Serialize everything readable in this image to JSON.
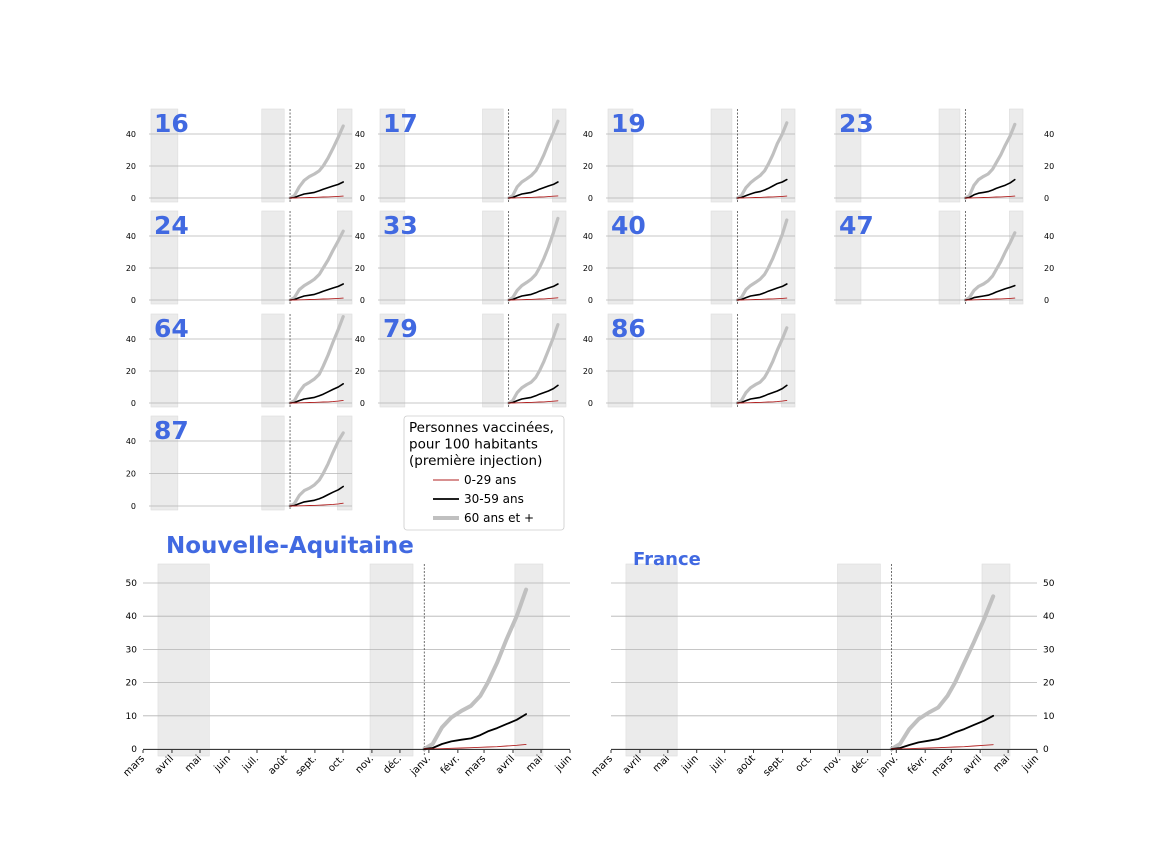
{
  "chart_data": {
    "type": "line",
    "legend": {
      "title_lines": [
        "Personnes vaccinées,",
        "pour 100 habitants",
        "(première injection)"
      ],
      "entries": [
        {
          "label": "0-29 ans",
          "color": "#b22222"
        },
        {
          "label": "30-59 ans",
          "color": "#000000"
        },
        {
          "label": "60 ans et +",
          "color": "#c0c0c0"
        }
      ]
    },
    "title_color": "#4169e1",
    "month_ticks": [
      "mars",
      "avril",
      "mai",
      "juin",
      "juil.",
      "août",
      "sept.",
      "oct.",
      "nov.",
      "déc.",
      "janv.",
      "févr.",
      "mars",
      "avril",
      "mai",
      "juin"
    ],
    "x_range": [
      "2020-03-01",
      "2021-06-01"
    ],
    "shaded_periods": [
      [
        "2020-03-17",
        "2020-05-11"
      ],
      [
        "2020-10-30",
        "2020-12-15"
      ],
      [
        "2021-04-03",
        "2021-05-03"
      ]
    ],
    "vline_date": "2020-12-27",
    "small_yticks": [
      "0",
      "20",
      "40"
    ],
    "large_yticks": [
      "0",
      "10",
      "20",
      "30",
      "40",
      "50"
    ],
    "grid": true,
    "dates": [
      "2020-12-27",
      "2021-01-05",
      "2021-01-15",
      "2021-01-25",
      "2021-02-05",
      "2021-02-15",
      "2021-02-25",
      "2021-03-05",
      "2021-03-15",
      "2021-03-25",
      "2021-04-05",
      "2021-04-15"
    ],
    "panels": [
      {
        "name": "16",
        "s0": [
          0,
          0,
          0.1,
          0.2,
          0.3,
          0.4,
          0.5,
          0.6,
          0.7,
          0.8,
          1.0,
          1.2
        ],
        "s1": [
          0,
          0.3,
          1.5,
          2.5,
          3.0,
          3.5,
          4.5,
          5.5,
          6.5,
          7.5,
          8.5,
          10.0
        ],
        "s2": [
          0,
          1.5,
          7.0,
          11.0,
          13.5,
          15.0,
          17.0,
          20.0,
          25.0,
          31.0,
          38.0,
          45.0
        ]
      },
      {
        "name": "17",
        "s0": [
          0,
          0,
          0.1,
          0.2,
          0.3,
          0.4,
          0.5,
          0.6,
          0.7,
          0.9,
          1.1,
          1.3
        ],
        "s1": [
          0,
          0.3,
          1.5,
          2.5,
          3.0,
          3.5,
          4.5,
          5.5,
          6.5,
          7.5,
          8.5,
          10.0
        ],
        "s2": [
          0,
          1.5,
          7.0,
          10.0,
          12.0,
          14.0,
          17.0,
          21.0,
          27.0,
          34.0,
          41.0,
          48.0
        ]
      },
      {
        "name": "19",
        "s0": [
          0,
          0,
          0.1,
          0.2,
          0.3,
          0.4,
          0.5,
          0.6,
          0.7,
          0.8,
          1.0,
          1.2
        ],
        "s1": [
          0,
          0.3,
          1.5,
          2.5,
          3.5,
          4.0,
          5.0,
          6.0,
          7.5,
          9.0,
          10.0,
          11.5
        ],
        "s2": [
          0,
          1.5,
          6.5,
          9.5,
          12.0,
          14.0,
          17.0,
          21.0,
          27.0,
          34.0,
          40.0,
          47.0
        ]
      },
      {
        "name": "23",
        "s0": [
          0,
          0,
          0.1,
          0.2,
          0.3,
          0.4,
          0.5,
          0.6,
          0.7,
          0.8,
          1.0,
          1.2
        ],
        "s1": [
          0,
          0.3,
          2.0,
          3.0,
          3.5,
          4.0,
          5.0,
          6.0,
          7.0,
          8.0,
          9.5,
          11.5
        ],
        "s2": [
          0,
          1.5,
          8.0,
          11.5,
          13.5,
          15.0,
          18.0,
          22.0,
          27.0,
          33.0,
          39.0,
          46.0
        ]
      },
      {
        "name": "24",
        "s0": [
          0,
          0,
          0.1,
          0.2,
          0.3,
          0.4,
          0.5,
          0.6,
          0.7,
          0.8,
          1.0,
          1.2
        ],
        "s1": [
          0,
          0.3,
          1.5,
          2.5,
          3.0,
          3.5,
          4.5,
          5.5,
          6.5,
          7.5,
          8.5,
          10.0
        ],
        "s2": [
          0,
          1.5,
          6.5,
          9.0,
          11.0,
          13.0,
          16.0,
          20.0,
          25.0,
          31.0,
          37.0,
          43.0
        ]
      },
      {
        "name": "33",
        "s0": [
          0,
          0,
          0.1,
          0.2,
          0.3,
          0.4,
          0.5,
          0.6,
          0.7,
          0.9,
          1.1,
          1.4
        ],
        "s1": [
          0,
          0.3,
          1.5,
          2.5,
          3.0,
          3.5,
          4.5,
          5.5,
          6.5,
          7.5,
          8.5,
          10.0
        ],
        "s2": [
          0,
          1.5,
          6.0,
          9.0,
          11.0,
          13.0,
          16.0,
          20.0,
          26.0,
          33.0,
          42.0,
          51.0
        ]
      },
      {
        "name": "40",
        "s0": [
          0,
          0,
          0.1,
          0.2,
          0.3,
          0.4,
          0.5,
          0.6,
          0.7,
          0.8,
          1.0,
          1.2
        ],
        "s1": [
          0,
          0.3,
          1.5,
          2.5,
          3.0,
          3.5,
          4.5,
          5.5,
          6.5,
          7.5,
          8.5,
          10.0
        ],
        "s2": [
          0,
          1.5,
          6.5,
          9.0,
          11.0,
          13.0,
          16.0,
          20.0,
          26.0,
          33.0,
          41.0,
          50.0
        ]
      },
      {
        "name": "47",
        "s0": [
          0,
          0,
          0.1,
          0.2,
          0.3,
          0.4,
          0.5,
          0.6,
          0.7,
          0.8,
          1.0,
          1.2
        ],
        "s1": [
          0,
          0.3,
          1.5,
          2.0,
          2.5,
          3.0,
          4.0,
          5.0,
          6.0,
          7.0,
          8.0,
          9.0
        ],
        "s2": [
          0,
          1.5,
          6.0,
          8.5,
          10.0,
          12.0,
          15.0,
          19.0,
          24.0,
          30.0,
          36.0,
          42.0
        ]
      },
      {
        "name": "64",
        "s0": [
          0,
          0,
          0.1,
          0.2,
          0.3,
          0.4,
          0.5,
          0.6,
          0.7,
          0.9,
          1.2,
          1.6
        ],
        "s1": [
          0,
          0.3,
          1.5,
          2.5,
          3.0,
          3.5,
          4.5,
          5.5,
          7.0,
          8.5,
          10.0,
          12.0
        ],
        "s2": [
          0,
          1.5,
          7.0,
          11.0,
          13.0,
          15.0,
          18.0,
          23.0,
          30.0,
          38.0,
          46.0,
          54.0
        ]
      },
      {
        "name": "79",
        "s0": [
          0,
          0,
          0.1,
          0.2,
          0.3,
          0.4,
          0.5,
          0.6,
          0.7,
          0.9,
          1.1,
          1.4
        ],
        "s1": [
          0,
          0.3,
          1.5,
          2.5,
          3.0,
          3.5,
          4.5,
          5.5,
          6.5,
          7.5,
          9.0,
          11.0
        ],
        "s2": [
          0,
          1.5,
          6.5,
          9.5,
          11.5,
          13.0,
          16.0,
          20.0,
          26.0,
          33.0,
          41.0,
          49.0
        ]
      },
      {
        "name": "86",
        "s0": [
          0,
          0,
          0.1,
          0.2,
          0.3,
          0.4,
          0.5,
          0.6,
          0.7,
          0.9,
          1.2,
          1.6
        ],
        "s1": [
          0,
          0.3,
          1.5,
          2.5,
          3.0,
          3.5,
          4.5,
          5.5,
          6.5,
          7.5,
          9.0,
          11.0
        ],
        "s2": [
          0,
          1.5,
          6.5,
          9.5,
          11.5,
          13.0,
          16.0,
          20.0,
          26.0,
          33.0,
          40.0,
          47.0
        ]
      },
      {
        "name": "87",
        "s0": [
          0,
          0,
          0.1,
          0.2,
          0.3,
          0.4,
          0.5,
          0.6,
          0.8,
          1.0,
          1.3,
          1.7
        ],
        "s1": [
          0,
          0.3,
          1.5,
          2.5,
          3.0,
          3.5,
          4.5,
          5.5,
          7.0,
          8.5,
          10.0,
          12.0
        ],
        "s2": [
          0,
          1.5,
          6.5,
          9.5,
          11.0,
          13.0,
          16.0,
          20.0,
          26.0,
          33.0,
          40.0,
          45.0
        ]
      },
      {
        "name": "Nouvelle-Aquitaine",
        "s0": [
          0,
          0,
          0.1,
          0.2,
          0.3,
          0.4,
          0.5,
          0.6,
          0.7,
          0.9,
          1.1,
          1.4
        ],
        "s1": [
          0,
          0.3,
          1.5,
          2.3,
          2.8,
          3.2,
          4.2,
          5.3,
          6.3,
          7.5,
          8.8,
          10.5
        ],
        "s2": [
          0,
          1.5,
          6.5,
          9.5,
          11.5,
          13.0,
          16.0,
          20.0,
          26.0,
          33.0,
          40.0,
          48.0
        ]
      },
      {
        "name": "France",
        "s0": [
          0,
          0,
          0.1,
          0.2,
          0.3,
          0.4,
          0.5,
          0.6,
          0.7,
          0.9,
          1.1,
          1.3
        ],
        "s1": [
          0,
          0.3,
          1.2,
          2.0,
          2.5,
          3.0,
          4.0,
          5.0,
          6.0,
          7.2,
          8.5,
          10.0
        ],
        "s2": [
          0,
          1.5,
          6.0,
          9.0,
          11.0,
          12.5,
          16.0,
          20.0,
          26.0,
          32.0,
          39.0,
          46.0
        ]
      }
    ]
  }
}
